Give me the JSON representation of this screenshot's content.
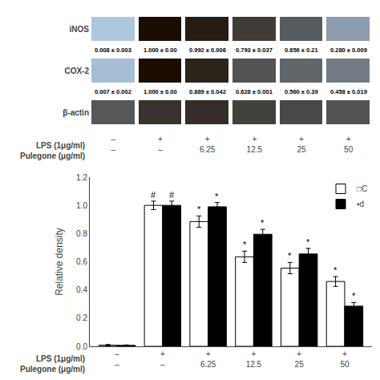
{
  "chart_data": [
    {
      "type": "heatmap",
      "color": "#aec6de",
      "zlim": [
        0,
        1
      ],
      "series": [
        {
          "name": "iNOS",
          "values": [
            0.0,
            1.0,
            0.92,
            0.75,
            0.58,
            0.22
          ],
          "measurements": [
            "0.008 ± 0.003",
            "1.000 ± 0.00",
            "0.992 ± 0.006",
            "0.793 ± 0.037",
            "0.656 ± 0.21",
            "0.280 ± 0.009"
          ]
        },
        {
          "name": "COX-2",
          "values": [
            0.05,
            1.0,
            0.88,
            0.62,
            0.52,
            0.4
          ],
          "measurements": [
            "0.007 ± 0.002",
            "1.000 ± 0.00",
            "0.889 ± 0.042",
            "0.628 ± 0.001",
            "0.560 ± 0.39",
            "0.458 ± 0.019"
          ]
        },
        {
          "name": "β-actin",
          "values": [
            0.6,
            0.8,
            0.82,
            0.72,
            0.68,
            0.62
          ]
        }
      ],
      "x_label_rows": [
        {
          "name": "LPS (1μg/ml)",
          "labels": [
            "–",
            "+",
            "+",
            "+",
            "+",
            "+"
          ]
        },
        {
          "name": "Pulegone (μg/ml)",
          "labels": [
            "–",
            "–",
            "6.25",
            "12.5",
            "25",
            "50"
          ]
        }
      ]
    },
    {
      "type": "bar",
      "ylabel": "Relative density",
      "x_label_rows": [
        {
          "name": "LPS (1μg/ml)",
          "labels": [
            "–",
            "+",
            "+",
            "+",
            "+",
            "+"
          ]
        },
        {
          "name": "Pulegone (μg/ml)",
          "labels": [
            "–",
            "–",
            "6.25",
            "12.5",
            "25",
            "50"
          ]
        }
      ],
      "series": [
        {
          "name": "□C",
          "color": "#ffffff",
          "values": [
            0.008,
            1.0,
            0.885,
            0.635,
            0.555,
            0.46
          ],
          "errors": [
            0.005,
            0.03,
            0.04,
            0.04,
            0.04,
            0.035
          ],
          "marks": [
            null,
            "#",
            "*",
            "*",
            "*",
            "*"
          ]
        },
        {
          "name": "▪d",
          "color": "#000000",
          "values": [
            0.007,
            1.0,
            0.99,
            0.795,
            0.655,
            0.285
          ],
          "errors": [
            0.003,
            0.03,
            0.03,
            0.035,
            0.04,
            0.025
          ],
          "marks": [
            null,
            "#",
            "*",
            "*",
            "*",
            "*"
          ]
        }
      ],
      "ylim": [
        0,
        1.2
      ],
      "yticks": [
        {
          "value": 0,
          "label": "0.0"
        },
        0.2,
        0.4,
        0.6,
        0.8,
        {
          "value": 1,
          "label": "1.0"
        },
        1.2
      ],
      "grid": false,
      "legend": "upper right"
    }
  ]
}
